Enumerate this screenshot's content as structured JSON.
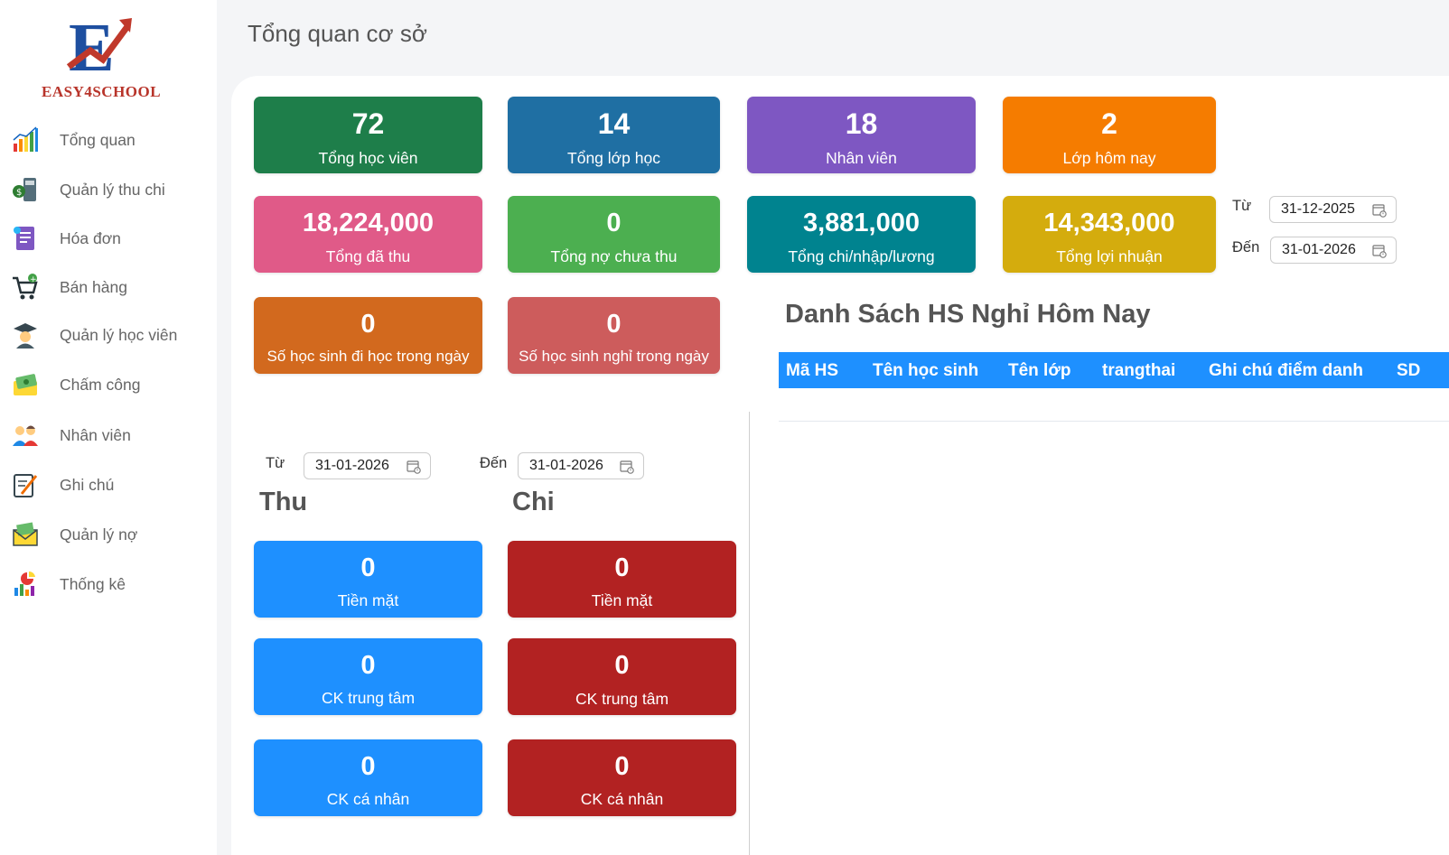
{
  "brand": {
    "name": "EASY4SCHOOL",
    "accent": "#1e4fa0",
    "arrow": "#c0392b"
  },
  "sidebar": {
    "items": [
      {
        "label": "Tổng quan",
        "icon": "bar-chart-icon"
      },
      {
        "label": "Quản lý thu chi",
        "icon": "calculator-icon"
      },
      {
        "label": "Hóa đơn",
        "icon": "invoice-icon"
      },
      {
        "label": "Bán hàng",
        "icon": "cart-icon"
      },
      {
        "label": "Quản lý học viên",
        "icon": "student-icon"
      },
      {
        "label": "Chấm công",
        "icon": "money-icon"
      },
      {
        "label": "Nhân viên",
        "icon": "staff-icon"
      },
      {
        "label": "Ghi chú",
        "icon": "note-icon"
      },
      {
        "label": "Quản lý nợ",
        "icon": "debt-envelope-icon"
      },
      {
        "label": "Thống kê",
        "icon": "statistics-icon"
      }
    ]
  },
  "header": {
    "title": "Tổng quan cơ sở"
  },
  "stats": {
    "row1": [
      {
        "value": "72",
        "label": "Tổng học viên",
        "color": "#1e7e4a"
      },
      {
        "value": "14",
        "label": "Tổng lớp học",
        "color": "#1f6fa3"
      },
      {
        "value": "18",
        "label": "Nhân viên",
        "color": "#7e57c2"
      },
      {
        "value": "2",
        "label": "Lớp hôm nay",
        "color": "#f57c00"
      }
    ],
    "row2": [
      {
        "value": "18,224,000",
        "label": "Tổng đã thu",
        "color": "#e05a88"
      },
      {
        "value": "0",
        "label": "Tổng nợ chưa thu",
        "color": "#4caf50"
      },
      {
        "value": "3,881,000",
        "label": "Tổng chi/nhập/lương",
        "color": "#00838f"
      },
      {
        "value": "14,343,000",
        "label": "Tổng lợi nhuận",
        "color": "#d4ac0d"
      }
    ],
    "row3": [
      {
        "value": "0",
        "label": "Số học sinh đi học trong ngày",
        "color": "#d2691e"
      },
      {
        "value": "0",
        "label": "Số học sinh nghỉ trong ngày",
        "color": "#cd5c5c"
      }
    ]
  },
  "range_top": {
    "from_label": "Từ",
    "from": "31-12-2025",
    "to_label": "Đến",
    "to": "31-01-2026"
  },
  "range_bottom": {
    "from_label": "Từ",
    "from": "31-01-2026",
    "to_label": "Đến",
    "to": "31-01-2026"
  },
  "absence": {
    "title": "Danh Sách HS Nghỉ Hôm Nay",
    "columns": [
      "Mã HS",
      "Tên học sinh",
      "Tên lớp",
      "trangthai",
      "Ghi chú điểm danh",
      "SD"
    ]
  },
  "income": {
    "title": "Thu",
    "color": "#1e90ff",
    "cards": [
      {
        "value": "0",
        "label": "Tiền mặt"
      },
      {
        "value": "0",
        "label": "CK trung tâm"
      },
      {
        "value": "0",
        "label": "CK cá nhân"
      }
    ]
  },
  "expense": {
    "title": "Chi",
    "color": "#b22222",
    "cards": [
      {
        "value": "0",
        "label": "Tiền mặt"
      },
      {
        "value": "0",
        "label": "CK trung tâm"
      },
      {
        "value": "0",
        "label": "CK cá nhân"
      }
    ]
  }
}
